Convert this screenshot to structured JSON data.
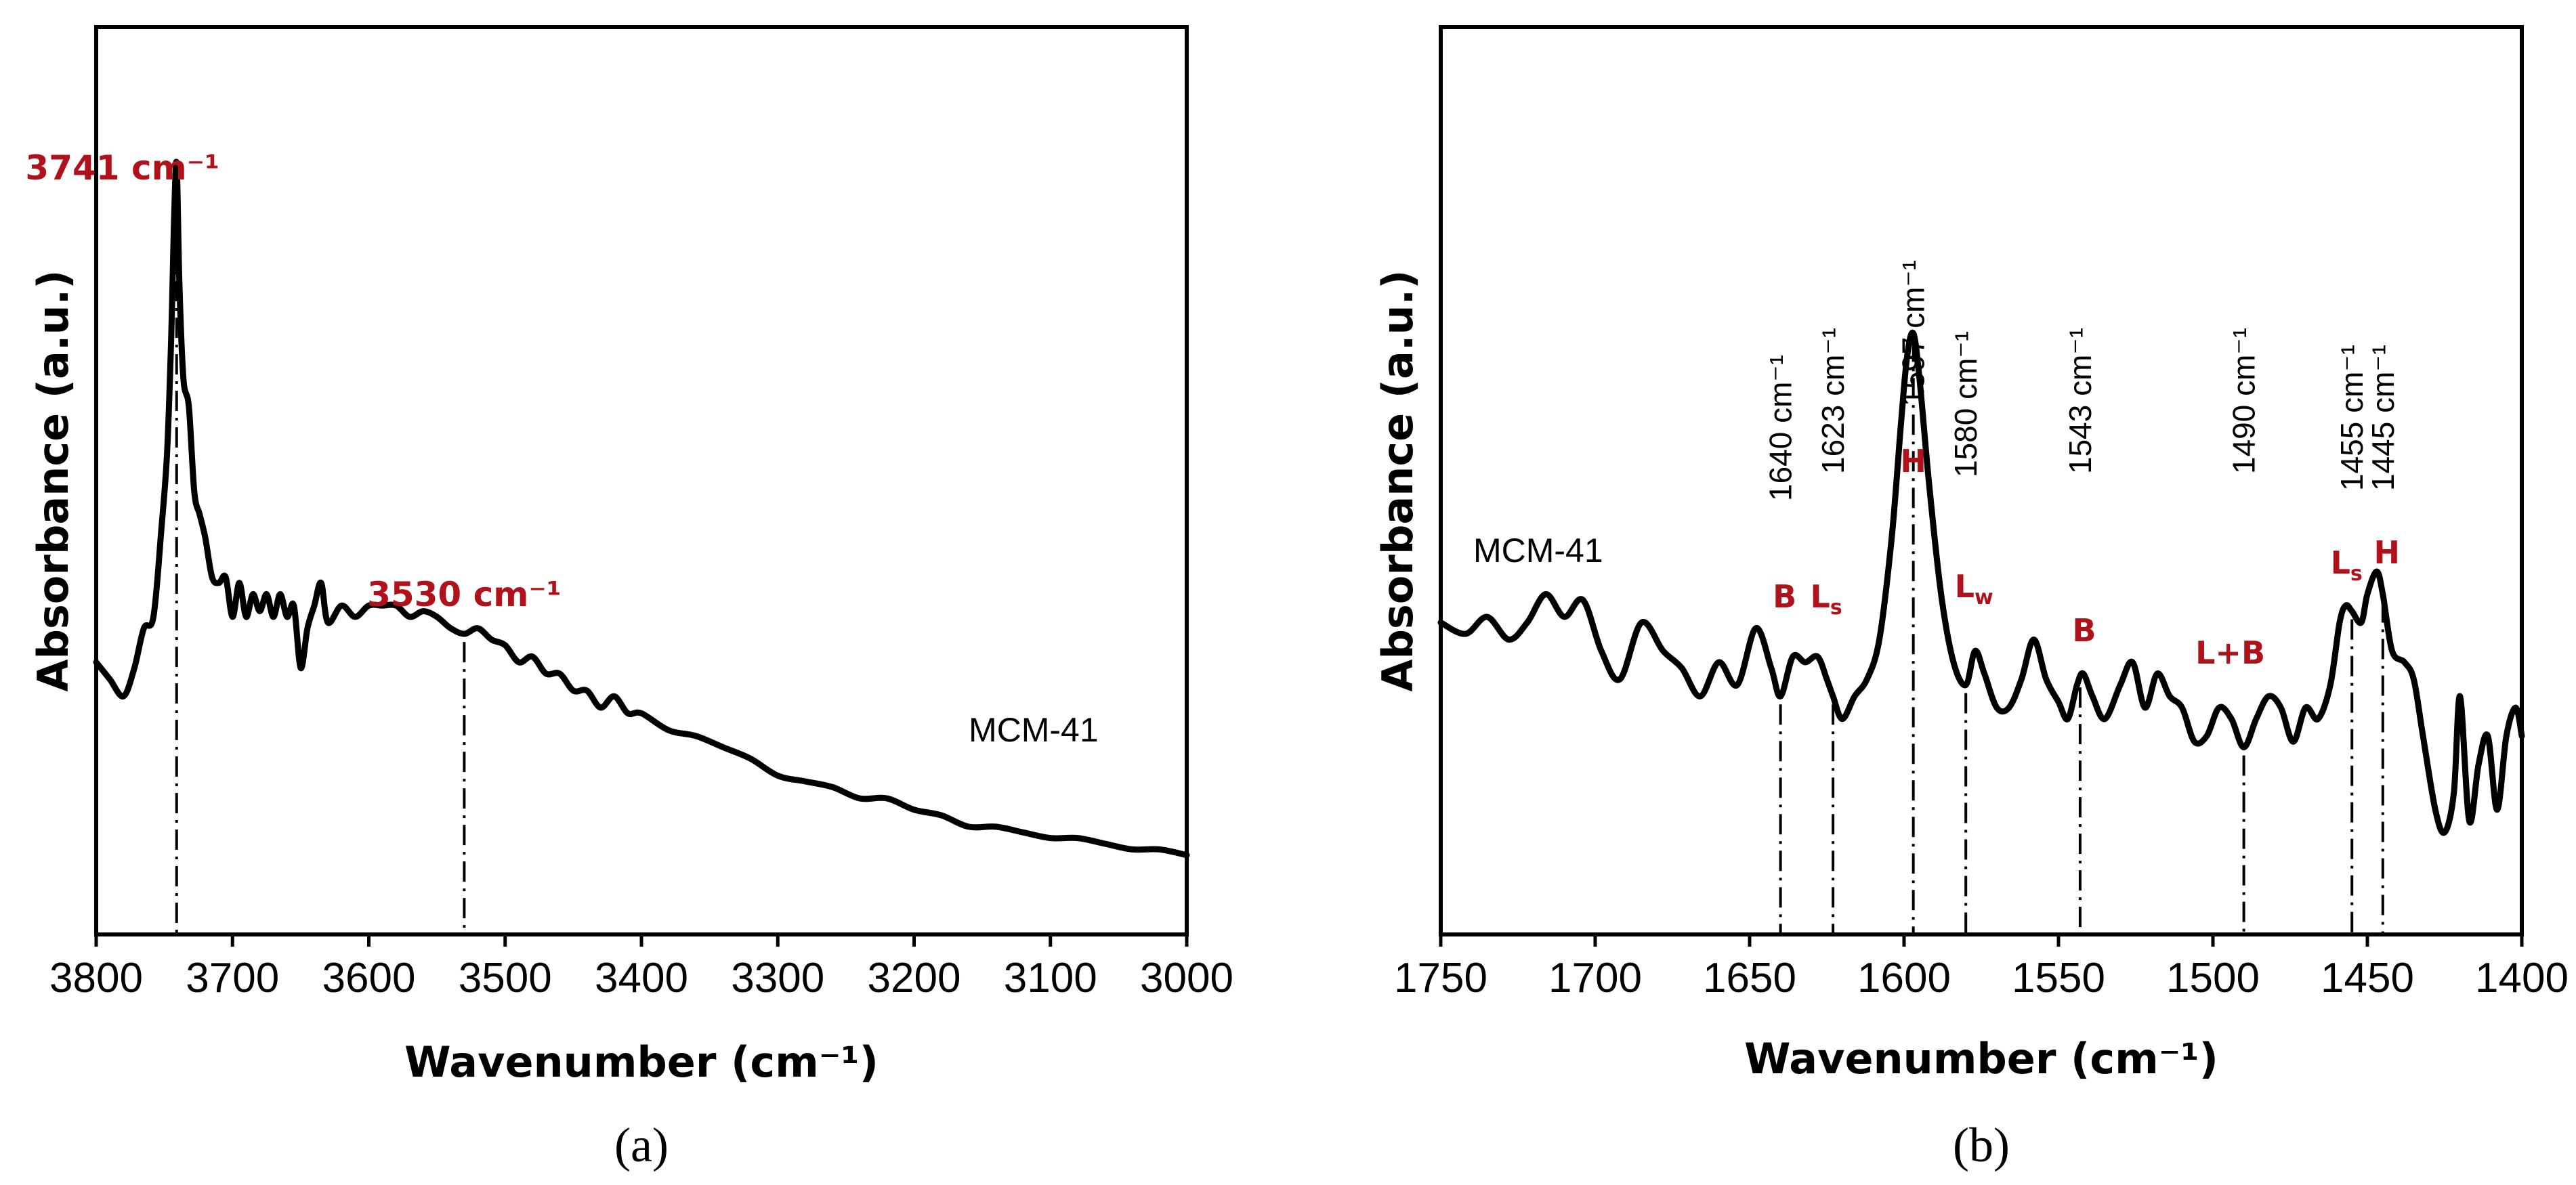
{
  "chart_data": [
    {
      "type": "line",
      "panel_label": "(a)",
      "xlabel": "Wavenumber (cm⁻¹)",
      "ylabel": "Absorbance  (a.u.)",
      "xlim": [
        3800,
        3000
      ],
      "ylim": [
        0,
        1.6
      ],
      "x_ticks": [
        3800,
        3700,
        3600,
        3500,
        3400,
        3300,
        3200,
        3100,
        3000
      ],
      "series_label": "MCM-41",
      "series": [
        {
          "name": "MCM-41",
          "x": [
            3800,
            3790,
            3780,
            3772,
            3765,
            3758,
            3752,
            3748,
            3745,
            3743,
            3741,
            3739,
            3736,
            3732,
            3728,
            3724,
            3720,
            3715,
            3710,
            3705,
            3700,
            3695,
            3690,
            3685,
            3680,
            3675,
            3670,
            3665,
            3660,
            3655,
            3650,
            3645,
            3640,
            3635,
            3630,
            3620,
            3610,
            3600,
            3590,
            3580,
            3570,
            3560,
            3550,
            3540,
            3530,
            3520,
            3510,
            3500,
            3490,
            3480,
            3470,
            3460,
            3450,
            3440,
            3430,
            3420,
            3410,
            3400,
            3380,
            3360,
            3340,
            3320,
            3300,
            3280,
            3260,
            3240,
            3220,
            3200,
            3180,
            3160,
            3140,
            3120,
            3100,
            3080,
            3060,
            3040,
            3020,
            3000
          ],
          "y": [
            0.48,
            0.45,
            0.42,
            0.47,
            0.54,
            0.56,
            0.72,
            0.85,
            1.05,
            1.25,
            1.36,
            1.15,
            0.98,
            0.93,
            0.78,
            0.74,
            0.7,
            0.63,
            0.62,
            0.63,
            0.56,
            0.62,
            0.56,
            0.6,
            0.57,
            0.6,
            0.56,
            0.6,
            0.56,
            0.58,
            0.47,
            0.54,
            0.58,
            0.62,
            0.55,
            0.58,
            0.56,
            0.58,
            0.58,
            0.58,
            0.56,
            0.57,
            0.56,
            0.54,
            0.53,
            0.54,
            0.52,
            0.51,
            0.48,
            0.49,
            0.46,
            0.46,
            0.43,
            0.43,
            0.4,
            0.42,
            0.39,
            0.39,
            0.36,
            0.35,
            0.33,
            0.31,
            0.28,
            0.27,
            0.26,
            0.24,
            0.24,
            0.22,
            0.21,
            0.19,
            0.19,
            0.18,
            0.17,
            0.17,
            0.16,
            0.15,
            0.15,
            0.14
          ]
        }
      ],
      "annotations": [
        {
          "x": 3741,
          "label": "3741 cm⁻¹"
        },
        {
          "x": 3530,
          "label": "3530 cm⁻¹"
        }
      ]
    },
    {
      "type": "line",
      "panel_label": "(b)",
      "xlabel": "Wavenumber (cm⁻¹)",
      "ylabel": "Absorbance (a.u.)",
      "xlim": [
        1750,
        1400
      ],
      "ylim": [
        0,
        1.6
      ],
      "x_ticks": [
        1750,
        1700,
        1650,
        1600,
        1550,
        1500,
        1450,
        1400
      ],
      "series_label": "MCM-41",
      "series": [
        {
          "name": "MCM-41",
          "x": [
            1750,
            1742,
            1735,
            1728,
            1722,
            1716,
            1710,
            1704,
            1698,
            1692,
            1685,
            1678,
            1672,
            1666,
            1660,
            1654,
            1648,
            1643,
            1640,
            1636,
            1632,
            1628,
            1625,
            1623,
            1620,
            1616,
            1612,
            1608,
            1604,
            1601,
            1599,
            1597,
            1595,
            1592,
            1588,
            1584,
            1580,
            1577,
            1574,
            1570,
            1566,
            1562,
            1558,
            1554,
            1550,
            1547,
            1544,
            1542,
            1539,
            1535,
            1530,
            1526,
            1522,
            1518,
            1514,
            1510,
            1506,
            1502,
            1498,
            1494,
            1490,
            1486,
            1482,
            1478,
            1474,
            1470,
            1466,
            1462,
            1459,
            1457,
            1455,
            1452,
            1450,
            1447,
            1445,
            1442,
            1438,
            1435,
            1432,
            1428,
            1425,
            1422,
            1420,
            1417,
            1414,
            1411,
            1408,
            1405,
            1402,
            1400
          ],
          "y": [
            0.55,
            0.53,
            0.56,
            0.52,
            0.55,
            0.6,
            0.56,
            0.59,
            0.5,
            0.45,
            0.55,
            0.5,
            0.47,
            0.42,
            0.48,
            0.44,
            0.54,
            0.47,
            0.42,
            0.49,
            0.48,
            0.49,
            0.45,
            0.42,
            0.38,
            0.42,
            0.45,
            0.52,
            0.7,
            0.9,
            1.02,
            1.06,
            0.98,
            0.8,
            0.6,
            0.48,
            0.44,
            0.5,
            0.46,
            0.4,
            0.4,
            0.45,
            0.52,
            0.45,
            0.41,
            0.38,
            0.44,
            0.46,
            0.42,
            0.38,
            0.44,
            0.48,
            0.4,
            0.46,
            0.42,
            0.4,
            0.34,
            0.35,
            0.4,
            0.38,
            0.33,
            0.38,
            0.42,
            0.4,
            0.34,
            0.4,
            0.38,
            0.44,
            0.55,
            0.58,
            0.57,
            0.55,
            0.6,
            0.64,
            0.6,
            0.5,
            0.48,
            0.45,
            0.35,
            0.22,
            0.18,
            0.25,
            0.42,
            0.2,
            0.3,
            0.35,
            0.22,
            0.35,
            0.4,
            0.35
          ]
        }
      ],
      "peak_lines": [
        {
          "x": 1640,
          "label": "1640 cm⁻¹",
          "assign": "B"
        },
        {
          "x": 1623,
          "label": "1623 cm⁻¹",
          "assign": "L",
          "sub": "s"
        },
        {
          "x": 1597,
          "label": "1597 cm⁻¹",
          "assign": "H"
        },
        {
          "x": 1580,
          "label": "1580 cm⁻¹",
          "assign": "L",
          "sub": "w"
        },
        {
          "x": 1543,
          "label": "1543 cm⁻¹",
          "assign": "B"
        },
        {
          "x": 1490,
          "label": "1490 cm⁻¹",
          "assign": "L+B"
        },
        {
          "x": 1455,
          "label": "1455 cm⁻¹",
          "assign": "L",
          "sub": "s"
        },
        {
          "x": 1445,
          "label": "1445 cm⁻¹",
          "assign": "H"
        }
      ]
    }
  ]
}
